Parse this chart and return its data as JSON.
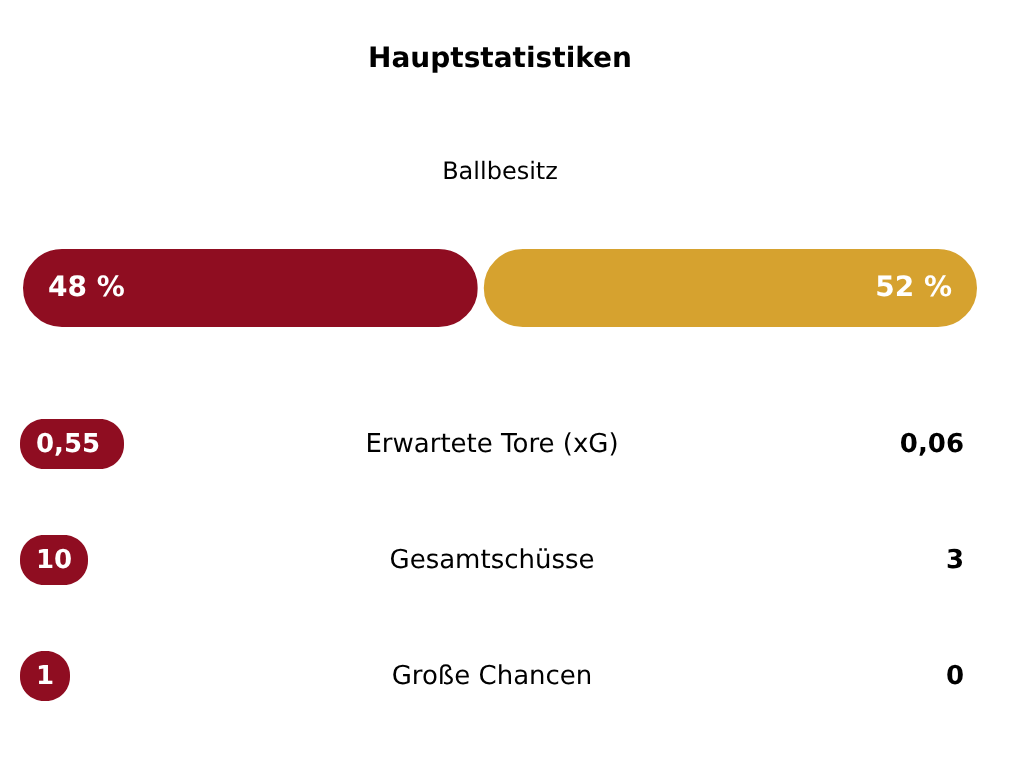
{
  "chart_data": [
    {
      "type": "bar",
      "title": "Hauptstatistiken",
      "subtitle": "Ballbesitz",
      "orientation": "horizontal",
      "stacked": true,
      "categories": [
        null
      ],
      "xlim": [
        0,
        100
      ],
      "tick_labels": false,
      "series": [
        {
          "color": "#8f0d21",
          "values": [
            48
          ],
          "value_labels": [
            "48 %"
          ]
        },
        {
          "color": "#d6a22f",
          "values": [
            52
          ],
          "value_labels": [
            "52 %"
          ]
        }
      ]
    },
    {
      "type": "other",
      "categories": [
        "Erwartete Tore (xG)",
        "Gesamtschüsse",
        "Große Chancen"
      ],
      "series": [
        {
          "color": "#8f0d21",
          "values": [
            0.55,
            10,
            1
          ],
          "value_labels": [
            "0,55",
            "10",
            "1"
          ]
        },
        {
          "color": "#000000",
          "values": [
            0.06,
            3,
            0
          ],
          "value_labels": [
            "0,06",
            "3",
            "0"
          ]
        }
      ]
    }
  ]
}
